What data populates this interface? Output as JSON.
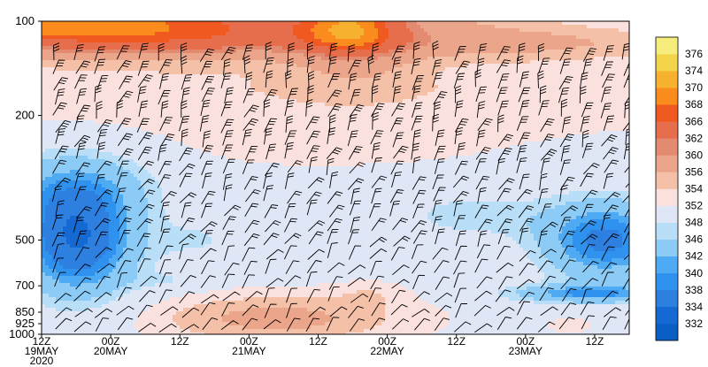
{
  "chart_data": {
    "type": "heatmap",
    "title": "",
    "xlabel": "",
    "ylabel": "",
    "y_axis": {
      "scale": "log-pressure",
      "range_hpa": [
        1000,
        100
      ],
      "ticks": [
        "100",
        "200",
        "500",
        "700",
        "850",
        "925",
        "1000"
      ],
      "tick_values": [
        100,
        200,
        500,
        700,
        850,
        925,
        1000
      ]
    },
    "x_axis": {
      "range_hours": [
        0,
        102
      ],
      "ticks": [
        {
          "hour": 0,
          "line1": "12Z",
          "line2": "19MAY",
          "line3": "2020"
        },
        {
          "hour": 12,
          "line1": "00Z",
          "line2": "20MAY",
          "line3": ""
        },
        {
          "hour": 24,
          "line1": "12Z",
          "line2": "",
          "line3": ""
        },
        {
          "hour": 36,
          "line1": "00Z",
          "line2": "21MAY",
          "line3": ""
        },
        {
          "hour": 48,
          "line1": "12Z",
          "line2": "",
          "line3": ""
        },
        {
          "hour": 60,
          "line1": "00Z",
          "line2": "22MAY",
          "line3": ""
        },
        {
          "hour": 72,
          "line1": "12Z",
          "line2": "",
          "line3": ""
        },
        {
          "hour": 84,
          "line1": "00Z",
          "line2": "23MAY",
          "line3": ""
        },
        {
          "hour": 96,
          "line1": "12Z",
          "line2": "",
          "line3": ""
        }
      ]
    },
    "colorbar": {
      "levels": [
        332,
        334,
        338,
        340,
        342,
        346,
        348,
        352,
        354,
        356,
        360,
        362,
        366,
        368,
        370,
        374,
        376
      ],
      "colors": [
        "#0a5fc4",
        "#1469d2",
        "#2d7fe0",
        "#2f92ee",
        "#4eaaf3",
        "#8ccbf5",
        "#b9def8",
        "#dfe6f6",
        "#fbe1de",
        "#f4c1a8",
        "#eba58a",
        "#e28b70",
        "#e76e4c",
        "#f05a20",
        "#fa8c1e",
        "#f6b12e",
        "#f4d44a",
        "#f6ed7d"
      ]
    }
  }
}
